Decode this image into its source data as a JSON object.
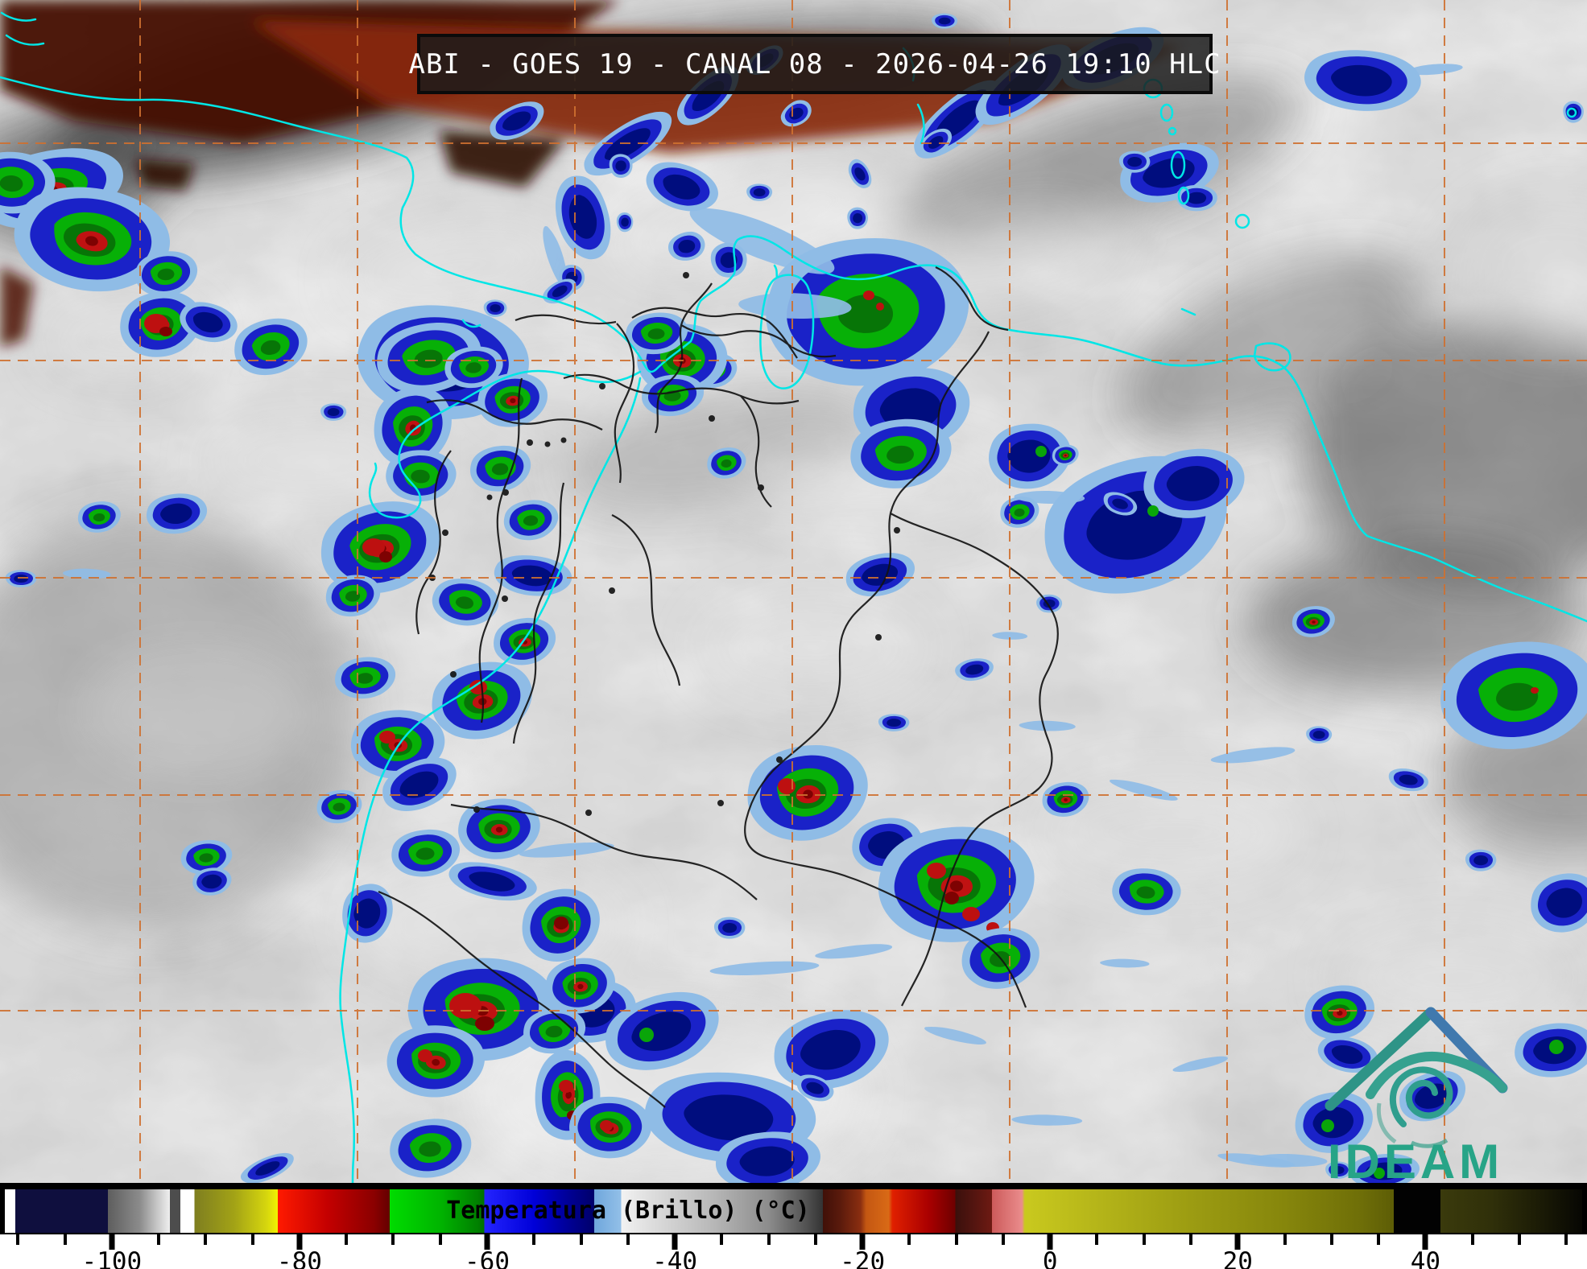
{
  "header": {
    "title": "ABI - GOES 19 - CANAL 08 - 2026-04-26 19:10 HLC"
  },
  "branding": {
    "logo_text": "IDEAM"
  },
  "colorbar": {
    "label": "Temperatura (Brillo) (°C)",
    "domain": [
      -111.4,
      56.7
    ],
    "major_ticks": [
      -100,
      -80,
      -60,
      -40,
      -20,
      0,
      20,
      40
    ],
    "minor_tick_start": -110,
    "minor_tick_end": 55,
    "minor_tick_step": 5,
    "stops": [
      {
        "t": -111.4,
        "c": "#ffffff"
      },
      {
        "t": -110.3,
        "c": "#ffffff"
      },
      {
        "t": -110.3,
        "c": "#0f0f3e"
      },
      {
        "t": -100.4,
        "c": "#0f0f3e"
      },
      {
        "t": -100.4,
        "c": "#5e5e5e"
      },
      {
        "t": -97.0,
        "c": "#8c8c8c"
      },
      {
        "t": -95.2,
        "c": "#c6c6c6"
      },
      {
        "t": -93.8,
        "c": "#efefef"
      },
      {
        "t": -93.8,
        "c": "#4d4d4d"
      },
      {
        "t": -92.7,
        "c": "#4d4d4d"
      },
      {
        "t": -92.7,
        "c": "#ffffff"
      },
      {
        "t": -91.2,
        "c": "#ffffff"
      },
      {
        "t": -91.2,
        "c": "#7e7e20"
      },
      {
        "t": -87.0,
        "c": "#a2a216"
      },
      {
        "t": -83.5,
        "c": "#d6d60e"
      },
      {
        "t": -82.3,
        "c": "#f2f200"
      },
      {
        "t": -82.3,
        "c": "#ff1a00"
      },
      {
        "t": -77.0,
        "c": "#c40000"
      },
      {
        "t": -72.0,
        "c": "#8a0000"
      },
      {
        "t": -70.4,
        "c": "#640000"
      },
      {
        "t": -70.4,
        "c": "#00dc00"
      },
      {
        "t": -65.0,
        "c": "#00b400"
      },
      {
        "t": -61.0,
        "c": "#008000"
      },
      {
        "t": -60.3,
        "c": "#007000"
      },
      {
        "t": -60.3,
        "c": "#2424ff"
      },
      {
        "t": -55.0,
        "c": "#0000d8"
      },
      {
        "t": -51.0,
        "c": "#000090"
      },
      {
        "t": -48.6,
        "c": "#00006a"
      },
      {
        "t": -48.6,
        "c": "#6ea6dc"
      },
      {
        "t": -45.7,
        "c": "#93c0e8"
      },
      {
        "t": -45.7,
        "c": "#f2f2f2"
      },
      {
        "t": -43.0,
        "c": "#e0e0e0"
      },
      {
        "t": -36.0,
        "c": "#b8b8b8"
      },
      {
        "t": -30.0,
        "c": "#8c8c8c"
      },
      {
        "t": -26.0,
        "c": "#525252"
      },
      {
        "t": -24.2,
        "c": "#333333"
      },
      {
        "t": -24.2,
        "c": "#401008"
      },
      {
        "t": -22.4,
        "c": "#5a1a0c"
      },
      {
        "t": -20.2,
        "c": "#8a2e10"
      },
      {
        "t": -19.6,
        "c": "#c45712"
      },
      {
        "t": -17.2,
        "c": "#d96a16"
      },
      {
        "t": -16.8,
        "c": "#e02000"
      },
      {
        "t": -13.0,
        "c": "#aa0000"
      },
      {
        "t": -10.1,
        "c": "#6e0000"
      },
      {
        "t": -10.1,
        "c": "#3a100c"
      },
      {
        "t": -8.0,
        "c": "#551510"
      },
      {
        "t": -6.2,
        "c": "#6e1a12"
      },
      {
        "t": -6.2,
        "c": "#cc5a5a"
      },
      {
        "t": -3.0,
        "c": "#ea8c8c"
      },
      {
        "t": -2.7,
        "c": "#c9c91e"
      },
      {
        "t": 5,
        "c": "#b5b519"
      },
      {
        "t": 15,
        "c": "#9c9c12"
      },
      {
        "t": 25,
        "c": "#86860c"
      },
      {
        "t": 33,
        "c": "#6f6f08"
      },
      {
        "t": 36.6,
        "c": "#5d5d06"
      },
      {
        "t": 36.6,
        "c": "#020202"
      },
      {
        "t": 41.6,
        "c": "#020202"
      },
      {
        "t": 41.6,
        "c": "#3a3a0c"
      },
      {
        "t": 47,
        "c": "#30300a"
      },
      {
        "t": 52,
        "c": "#1c1c06"
      },
      {
        "t": 56.7,
        "c": "#070703"
      }
    ]
  },
  "map_overlay": {
    "grid_color": "#cf7030",
    "coast_color": "#00e6e6",
    "border_color": "#141414",
    "clear_sky_warm_color": "#8a2a0e",
    "cell_colors": {
      "light_rim": "#8fbce6",
      "deep_convection_blue": "#1a22c8",
      "very_deep_navy": "#000d7e",
      "overshoot_green": "#07b007",
      "overshoot_red": "#c01212"
    }
  }
}
